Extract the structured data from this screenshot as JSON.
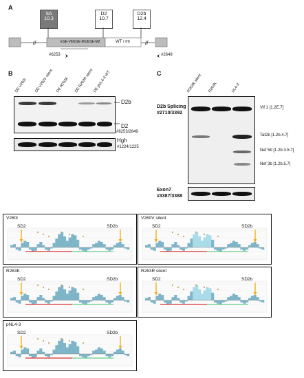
{
  "panelA": {
    "letter": "A",
    "sa_label": "SA",
    "sa_value": "10.3",
    "d2_label": "D2",
    "d2_value": "10.7",
    "d2b_label": "D2b",
    "d2b_value": "12.4",
    "ese_label": "ESE-Vif/ESE-M1/ESE-M2",
    "wt_label": "WT / mt",
    "primer_fwd": "#6253",
    "primer_rev": "#2649"
  },
  "panelB": {
    "letter": "B",
    "lanes": [
      "DE V260I",
      "DE V260V silent",
      "DE R263K",
      "DE R263R silent",
      "DE pNL4-3 WT"
    ],
    "band_top": "D2b",
    "band_bottom": "D2",
    "primer_main": "#6253/2649",
    "hgh_label": "Hgh",
    "hgh_primer": "#1224/1225"
  },
  "panelC": {
    "letter": "C",
    "lanes": [
      "R263R silent",
      "R263K",
      "NL4-3"
    ],
    "title1": "D2b Splicing",
    "title2": "#2710/3392",
    "bands": [
      "Vif 1 [1.2E.7]",
      "Tat2b [1.2b.4.7]",
      "Nef 5b [1.2b.3.5.7]",
      "Nef 3b [1.2b.5.7]"
    ],
    "exon_label": "Exon7",
    "exon_primer": "#3387/3388"
  },
  "plots": [
    {
      "title": "V260I",
      "sd_left": "SD2",
      "sd_right": "SD2b"
    },
    {
      "title": "V260V silent",
      "sd_left": "SD2",
      "sd_right": "SD2b"
    },
    {
      "title": "R263K",
      "sd_left": "SD2",
      "sd_right": "SD2b"
    },
    {
      "title": "R263R silent",
      "sd_left": "SD2",
      "sd_right": "SD2b"
    },
    {
      "title": "pNL4-3",
      "sd_left": "SD2",
      "sd_right": "SD2b"
    }
  ],
  "colors": {
    "bar": "#7fb5c8",
    "bar_light": "#a9dbe8",
    "red_line": "#d9302f",
    "green_line": "#3fbf6a",
    "arrow": "#f2b01e",
    "sa_box": "#7a7a7a"
  }
}
